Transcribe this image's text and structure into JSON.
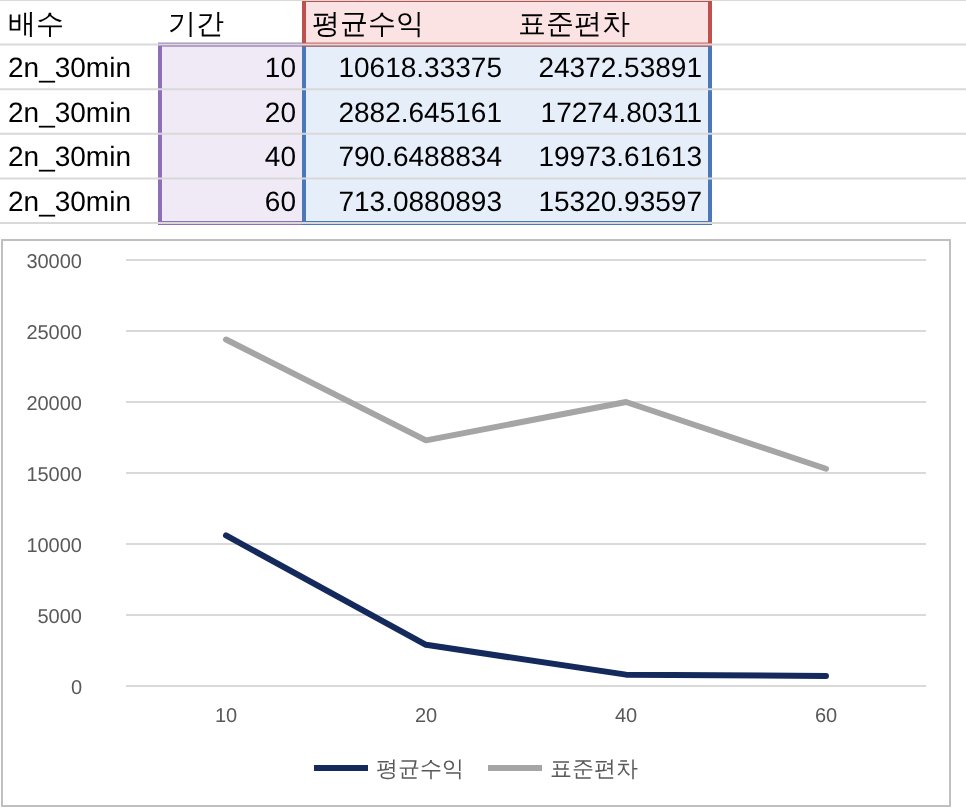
{
  "chart_data": {
    "type": "line",
    "categories": [
      "10",
      "20",
      "40",
      "60"
    ],
    "series": [
      {
        "name": "평균수익",
        "color": "#142a5c",
        "values": [
          10600,
          2900,
          800,
          700
        ]
      },
      {
        "name": "표준편차",
        "color": "#a5a5a5",
        "values": [
          24400,
          17300,
          20000,
          15300
        ]
      }
    ],
    "ylim": [
      0,
      30000
    ],
    "yticks": [
      0,
      5000,
      10000,
      15000,
      20000,
      25000,
      30000
    ],
    "grid": "y",
    "legend": "bottom",
    "annotations": [
      "배수",
      "기간",
      "평균수익",
      "표준편차",
      "2n_30min",
      "10",
      "10618.33375",
      "24372.53891",
      "2n_30min",
      "20",
      "2882.645161",
      "17274.80311",
      "2n_30min",
      "40",
      "790.6488834",
      "19973.61613",
      "2n_30min",
      "60",
      "713.0880893",
      "15320.93597"
    ]
  }
}
